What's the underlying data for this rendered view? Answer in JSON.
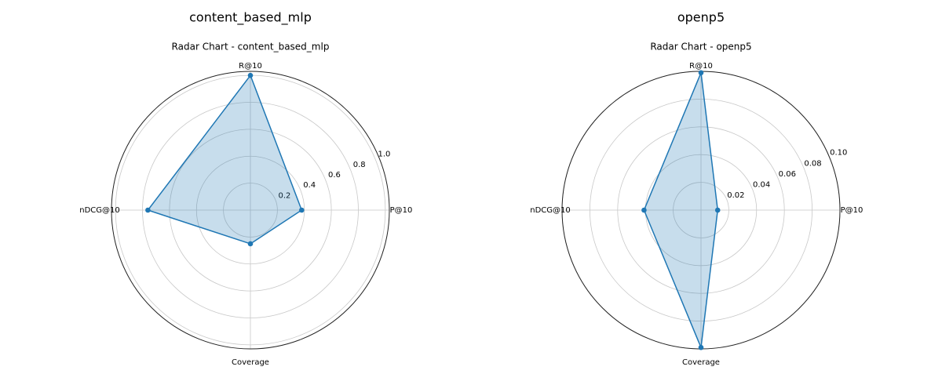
{
  "chart_data": [
    {
      "type": "radar",
      "figure_title": "content_based_mlp",
      "title": "Radar Chart - content_based_mlp",
      "categories": [
        "P@10",
        "R@10",
        "nDCG@10",
        "Coverage"
      ],
      "series": [
        {
          "values": [
            0.38,
            1.0,
            0.76,
            0.25
          ]
        }
      ],
      "rlim": [
        0,
        1.03
      ],
      "rticks": [
        0.2,
        0.4,
        0.6,
        0.8,
        1.0
      ],
      "rtick_labels": [
        "0.2",
        "0.4",
        "0.6",
        "0.8",
        "1.0"
      ],
      "grid": true,
      "colors": {
        "line": "#1f77b4",
        "fill": "#1f77b4",
        "grid": "#c8c8c8",
        "spine": "#222222"
      }
    },
    {
      "type": "radar",
      "figure_title": "openp5",
      "title": "Radar Chart - openp5",
      "categories": [
        "P@10",
        "R@10",
        "nDCG@10",
        "Coverage"
      ],
      "series": [
        {
          "values": [
            0.012,
            0.099,
            0.041,
            0.099
          ]
        }
      ],
      "rlim": [
        0,
        0.1
      ],
      "rticks": [
        0.02,
        0.04,
        0.06,
        0.08,
        0.1
      ],
      "rtick_labels": [
        "0.02",
        "0.04",
        "0.06",
        "0.08",
        "0.10"
      ],
      "grid": true,
      "colors": {
        "line": "#1f77b4",
        "fill": "#1f77b4",
        "grid": "#c8c8c8",
        "spine": "#222222"
      }
    }
  ]
}
